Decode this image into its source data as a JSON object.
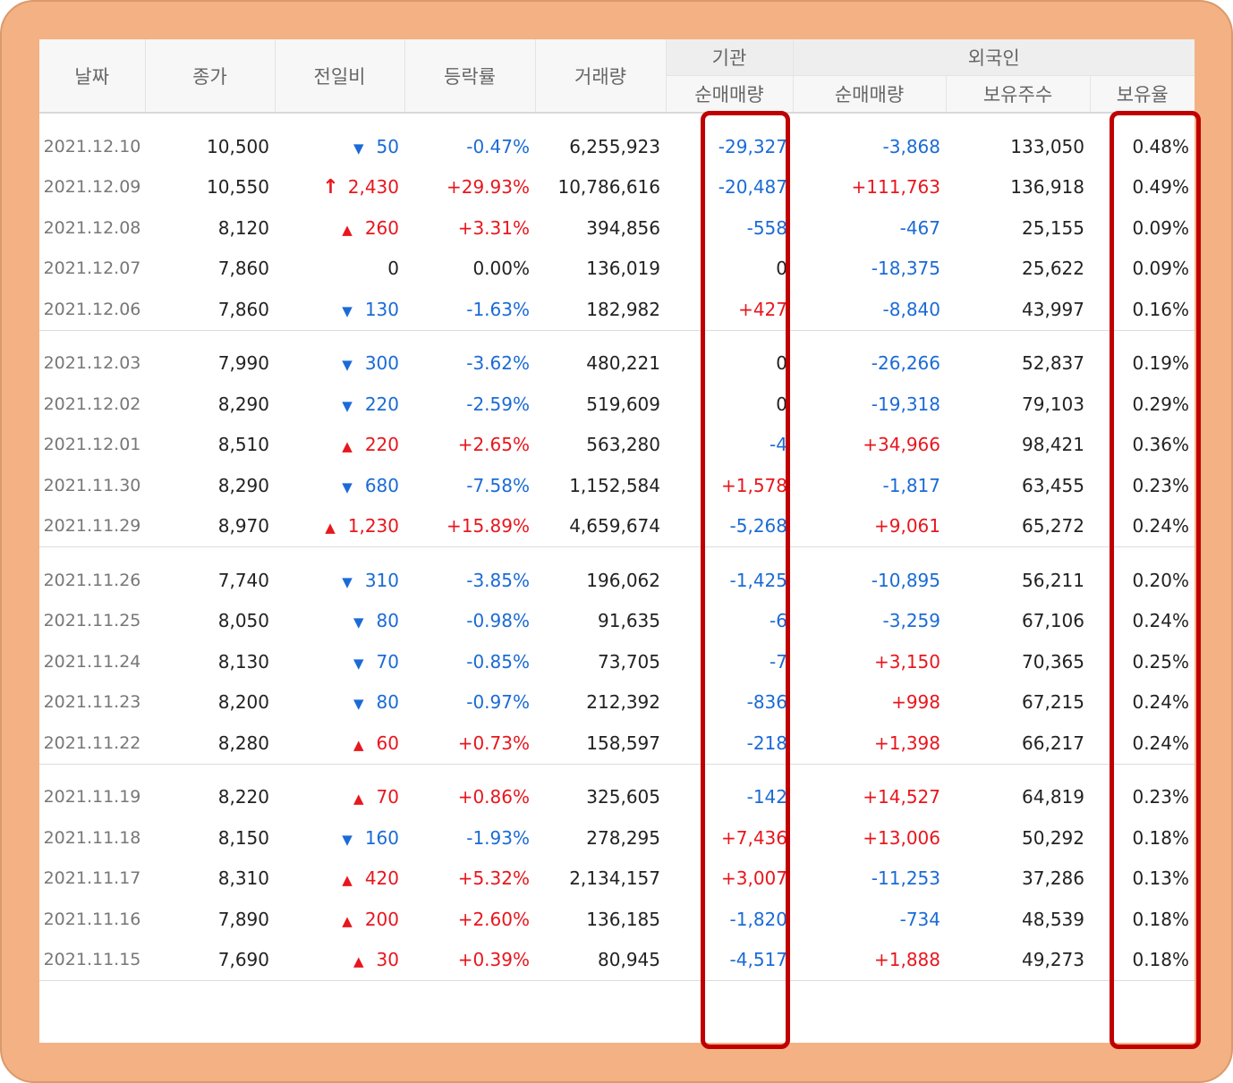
{
  "headers": {
    "date": "날짜",
    "close": "종가",
    "change": "전일비",
    "rate": "등락률",
    "volume": "거래량",
    "inst_group": "기관",
    "inst_net": "순매매량",
    "foreign_group": "외국인",
    "foreign_net": "순매매량",
    "foreign_shares": "보유주수",
    "foreign_ratio": "보유율"
  },
  "colors": {
    "up": "#e8161d",
    "down": "#1a6bd6",
    "highlight": "#c00000",
    "frame": "#f4b183"
  },
  "rows": [
    {
      "date": "2021.12.10",
      "close": "10,500",
      "dir": "down",
      "change": "50",
      "rate": "-0.47%",
      "volume": "6,255,923",
      "inst": "-29,327",
      "foreign": "-3,868",
      "shares": "133,050",
      "ratio": "0.48%"
    },
    {
      "date": "2021.12.09",
      "close": "10,550",
      "dir": "limit-up",
      "change": "2,430",
      "rate": "+29.93%",
      "volume": "10,786,616",
      "inst": "-20,487",
      "foreign": "+111,763",
      "shares": "136,918",
      "ratio": "0.49%"
    },
    {
      "date": "2021.12.08",
      "close": "8,120",
      "dir": "up",
      "change": "260",
      "rate": "+3.31%",
      "volume": "394,856",
      "inst": "-558",
      "foreign": "-467",
      "shares": "25,155",
      "ratio": "0.09%"
    },
    {
      "date": "2021.12.07",
      "close": "7,860",
      "dir": "flat",
      "change": "0",
      "rate": "0.00%",
      "volume": "136,019",
      "inst": "0",
      "foreign": "-18,375",
      "shares": "25,622",
      "ratio": "0.09%"
    },
    {
      "date": "2021.12.06",
      "close": "7,860",
      "dir": "down",
      "change": "130",
      "rate": "-1.63%",
      "volume": "182,982",
      "inst": "+427",
      "foreign": "-8,840",
      "shares": "43,997",
      "ratio": "0.16%"
    },
    {
      "date": "2021.12.03",
      "close": "7,990",
      "dir": "down",
      "change": "300",
      "rate": "-3.62%",
      "volume": "480,221",
      "inst": "0",
      "foreign": "-26,266",
      "shares": "52,837",
      "ratio": "0.19%"
    },
    {
      "date": "2021.12.02",
      "close": "8,290",
      "dir": "down",
      "change": "220",
      "rate": "-2.59%",
      "volume": "519,609",
      "inst": "0",
      "foreign": "-19,318",
      "shares": "79,103",
      "ratio": "0.29%"
    },
    {
      "date": "2021.12.01",
      "close": "8,510",
      "dir": "up",
      "change": "220",
      "rate": "+2.65%",
      "volume": "563,280",
      "inst": "-4",
      "foreign": "+34,966",
      "shares": "98,421",
      "ratio": "0.36%"
    },
    {
      "date": "2021.11.30",
      "close": "8,290",
      "dir": "down",
      "change": "680",
      "rate": "-7.58%",
      "volume": "1,152,584",
      "inst": "+1,578",
      "foreign": "-1,817",
      "shares": "63,455",
      "ratio": "0.23%"
    },
    {
      "date": "2021.11.29",
      "close": "8,970",
      "dir": "up",
      "change": "1,230",
      "rate": "+15.89%",
      "volume": "4,659,674",
      "inst": "-5,268",
      "foreign": "+9,061",
      "shares": "65,272",
      "ratio": "0.24%"
    },
    {
      "date": "2021.11.26",
      "close": "7,740",
      "dir": "down",
      "change": "310",
      "rate": "-3.85%",
      "volume": "196,062",
      "inst": "-1,425",
      "foreign": "-10,895",
      "shares": "56,211",
      "ratio": "0.20%"
    },
    {
      "date": "2021.11.25",
      "close": "8,050",
      "dir": "down",
      "change": "80",
      "rate": "-0.98%",
      "volume": "91,635",
      "inst": "-6",
      "foreign": "-3,259",
      "shares": "67,106",
      "ratio": "0.24%"
    },
    {
      "date": "2021.11.24",
      "close": "8,130",
      "dir": "down",
      "change": "70",
      "rate": "-0.85%",
      "volume": "73,705",
      "inst": "-7",
      "foreign": "+3,150",
      "shares": "70,365",
      "ratio": "0.25%"
    },
    {
      "date": "2021.11.23",
      "close": "8,200",
      "dir": "down",
      "change": "80",
      "rate": "-0.97%",
      "volume": "212,392",
      "inst": "-836",
      "foreign": "+998",
      "shares": "67,215",
      "ratio": "0.24%"
    },
    {
      "date": "2021.11.22",
      "close": "8,280",
      "dir": "up",
      "change": "60",
      "rate": "+0.73%",
      "volume": "158,597",
      "inst": "-218",
      "foreign": "+1,398",
      "shares": "66,217",
      "ratio": "0.24%"
    },
    {
      "date": "2021.11.19",
      "close": "8,220",
      "dir": "up",
      "change": "70",
      "rate": "+0.86%",
      "volume": "325,605",
      "inst": "-142",
      "foreign": "+14,527",
      "shares": "64,819",
      "ratio": "0.23%"
    },
    {
      "date": "2021.11.18",
      "close": "8,150",
      "dir": "down",
      "change": "160",
      "rate": "-1.93%",
      "volume": "278,295",
      "inst": "+7,436",
      "foreign": "+13,006",
      "shares": "50,292",
      "ratio": "0.18%"
    },
    {
      "date": "2021.11.17",
      "close": "8,310",
      "dir": "up",
      "change": "420",
      "rate": "+5.32%",
      "volume": "2,134,157",
      "inst": "+3,007",
      "foreign": "-11,253",
      "shares": "37,286",
      "ratio": "0.13%"
    },
    {
      "date": "2021.11.16",
      "close": "7,890",
      "dir": "up",
      "change": "200",
      "rate": "+2.60%",
      "volume": "136,185",
      "inst": "-1,820",
      "foreign": "-734",
      "shares": "48,539",
      "ratio": "0.18%"
    },
    {
      "date": "2021.11.15",
      "close": "7,690",
      "dir": "up",
      "change": "30",
      "rate": "+0.39%",
      "volume": "80,945",
      "inst": "-4,517",
      "foreign": "+1,888",
      "shares": "49,273",
      "ratio": "0.18%"
    }
  ]
}
